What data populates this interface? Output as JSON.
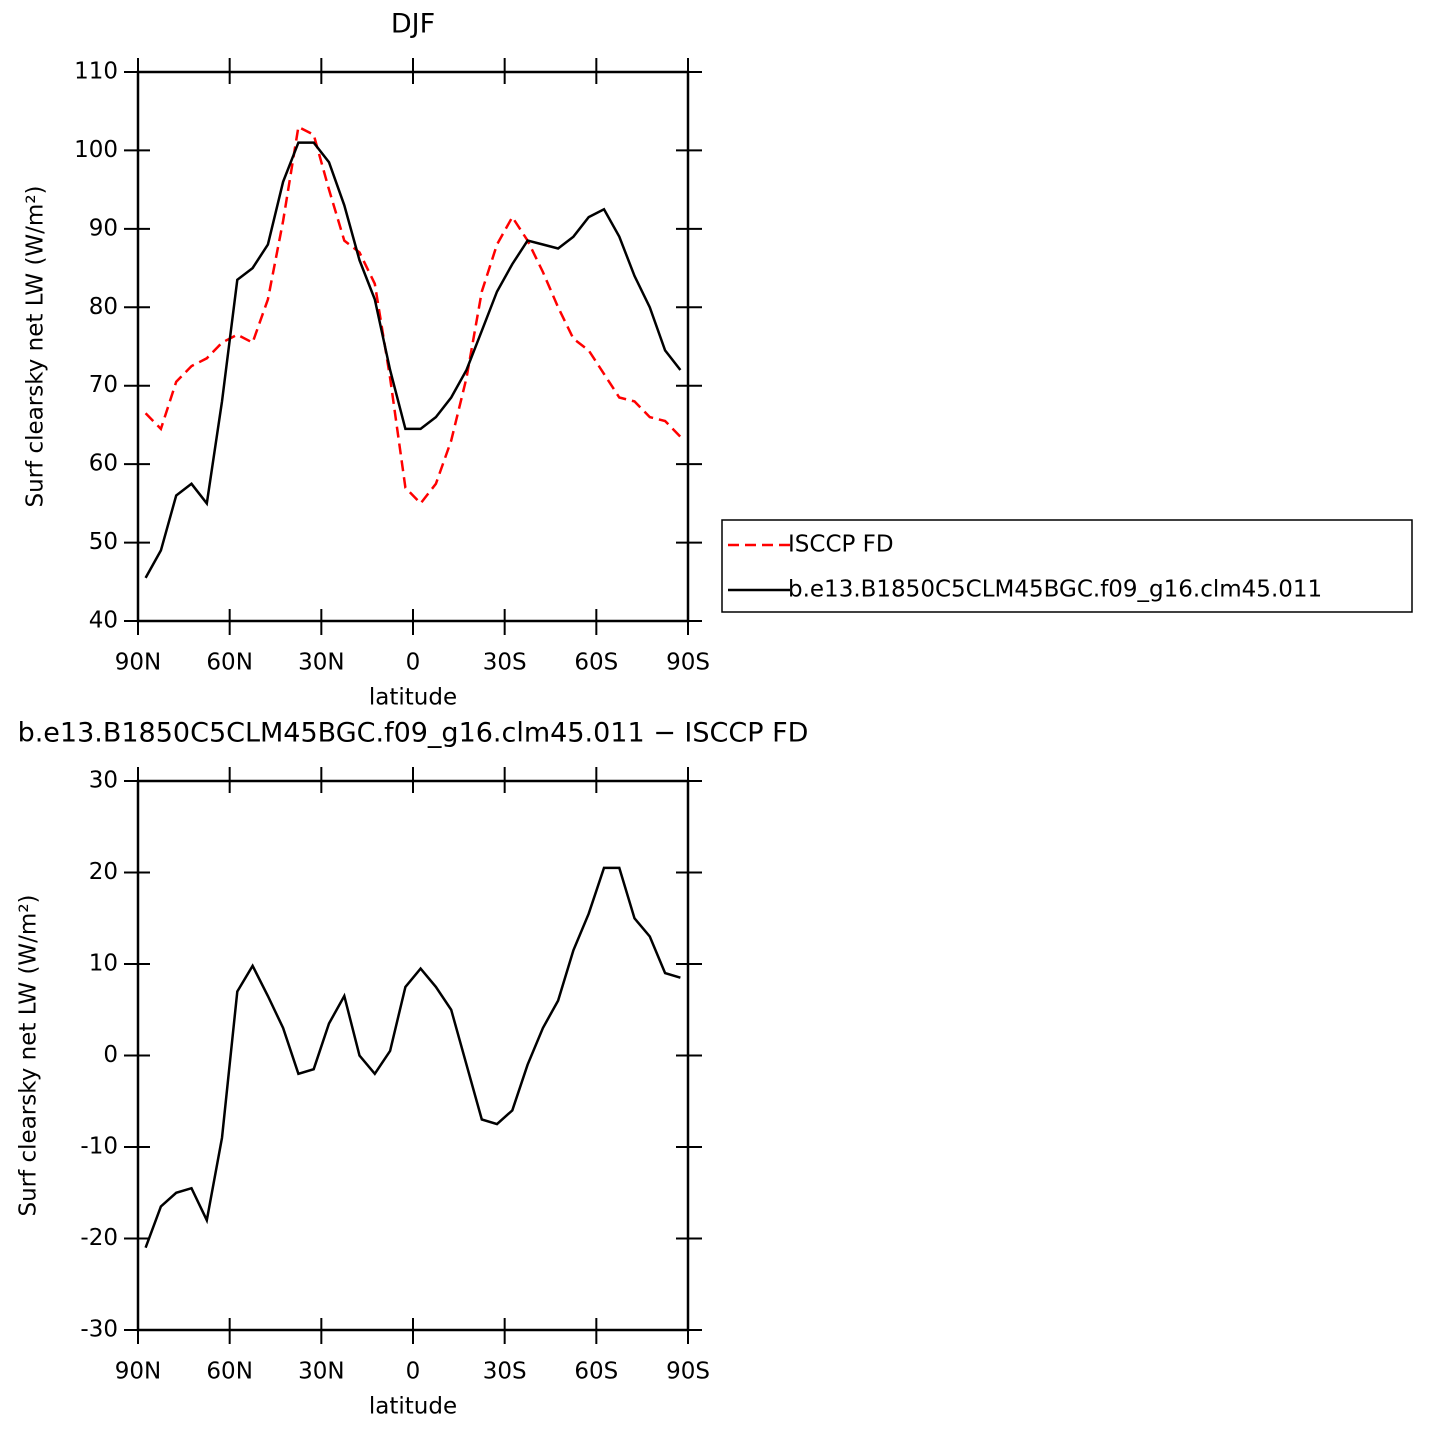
{
  "chart_data": [
    {
      "type": "line",
      "title": "DJF",
      "x_label": "latitude",
      "y_label": "Surf clearsky net LW (W/m²)",
      "x": [
        87.5,
        82.5,
        77.5,
        72.5,
        67.5,
        62.5,
        57.5,
        52.5,
        47.5,
        42.5,
        37.5,
        32.5,
        27.5,
        22.5,
        17.5,
        12.5,
        7.5,
        2.5,
        -2.5,
        -7.5,
        -12.5,
        -17.5,
        -22.5,
        -27.5,
        -32.5,
        -37.5,
        -42.5,
        -47.5,
        -52.5,
        -57.5,
        -62.5,
        -67.5,
        -72.5,
        -77.5,
        -82.5,
        -87.5
      ],
      "series": [
        {
          "name": "ISCCP FD",
          "color": "#ff0000",
          "style": "dashed",
          "values": [
            66.5,
            64.5,
            70.5,
            72.5,
            73.5,
            75.5,
            76.5,
            75.5,
            81,
            91,
            103,
            102,
            95,
            88.5,
            87,
            83,
            71,
            57,
            55,
            57.5,
            63,
            71,
            82,
            88,
            91.5,
            88.5,
            84.5,
            80,
            76,
            74.5,
            71.5,
            68.5,
            68,
            66,
            65.5,
            63.5
          ]
        },
        {
          "name": "b.e13.B1850C5CLM45BGC.f09_g16.clm45.011",
          "color": "#000000",
          "style": "solid",
          "values": [
            45.5,
            49,
            56,
            57.5,
            55,
            68,
            83.5,
            85,
            88,
            96,
            101,
            101,
            98.5,
            93,
            86,
            81,
            72,
            64.5,
            64.5,
            66,
            68.5,
            72,
            77,
            82,
            85.5,
            88.5,
            88,
            87.5,
            89,
            91.5,
            92.5,
            89,
            84,
            80,
            74.5,
            72
          ]
        }
      ],
      "xlim": [
        90,
        -90
      ],
      "xticks": [
        {
          "value": 90,
          "label": "90N"
        },
        {
          "value": 60,
          "label": "60N"
        },
        {
          "value": 30,
          "label": "30N"
        },
        0,
        {
          "value": -30,
          "label": "30S"
        },
        {
          "value": -60,
          "label": "60S"
        },
        {
          "value": -90,
          "label": "90S"
        }
      ],
      "ylim": [
        40,
        110
      ],
      "yticks": [
        40,
        50,
        60,
        70,
        80,
        90,
        100,
        110
      ],
      "legend": "right"
    },
    {
      "type": "line",
      "title": "b.e13.B1850C5CLM45BGC.f09_g16.clm45.011 − ISCCP FD",
      "x_label": "latitude",
      "y_label": "Surf clearsky net LW (W/m²)",
      "x": [
        87.5,
        82.5,
        77.5,
        72.5,
        67.5,
        62.5,
        57.5,
        52.5,
        47.5,
        42.5,
        37.5,
        32.5,
        27.5,
        22.5,
        17.5,
        12.5,
        7.5,
        2.5,
        -2.5,
        -7.5,
        -12.5,
        -17.5,
        -22.5,
        -27.5,
        -32.5,
        -37.5,
        -42.5,
        -47.5,
        -52.5,
        -57.5,
        -62.5,
        -67.5,
        -72.5,
        -77.5,
        -82.5,
        -87.5
      ],
      "color": "#000000",
      "values": [
        -21,
        -16.5,
        -15,
        -14.5,
        -18,
        -9,
        7,
        9.8,
        6.5,
        3,
        -2,
        -1.5,
        3.5,
        6.5,
        0,
        -2,
        0.5,
        7.5,
        9.5,
        7.5,
        5,
        -1,
        -7,
        -7.5,
        -6,
        -1,
        3,
        6,
        11.5,
        15.5,
        20.5,
        20.5,
        15,
        13,
        9,
        8.5
      ],
      "xlim": [
        90,
        -90
      ],
      "xticks": [
        {
          "value": 90,
          "label": "90N"
        },
        {
          "value": 60,
          "label": "60N"
        },
        {
          "value": 30,
          "label": "30N"
        },
        0,
        {
          "value": -30,
          "label": "30S"
        },
        {
          "value": -60,
          "label": "60S"
        },
        {
          "value": -90,
          "label": "90S"
        }
      ],
      "ylim": [
        -30,
        30
      ],
      "yticks": [
        -30,
        -20,
        -10,
        0,
        10,
        20,
        30
      ]
    }
  ]
}
